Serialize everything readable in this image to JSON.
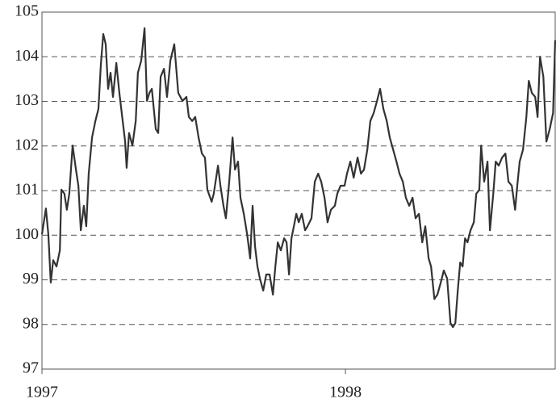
{
  "chart_data": {
    "type": "line",
    "x": [
      1997.0,
      1997.013,
      1997.021,
      1997.029,
      1997.037,
      1997.048,
      1997.059,
      1997.064,
      1997.074,
      1997.082,
      1997.09,
      1997.101,
      1997.112,
      1997.12,
      1997.128,
      1997.138,
      1997.146,
      1997.154,
      1997.165,
      1997.176,
      1997.186,
      1997.194,
      1997.202,
      1997.21,
      1997.218,
      1997.226,
      1997.234,
      1997.245,
      1997.255,
      1997.266,
      1997.274,
      1997.279,
      1997.287,
      1997.298,
      1997.309,
      1997.316,
      1997.327,
      1997.338,
      1997.346,
      1997.354,
      1997.362,
      1997.375,
      1997.383,
      1997.391,
      1997.402,
      1997.412,
      1997.423,
      1997.436,
      1997.449,
      1997.463,
      1997.476,
      1997.484,
      1997.495,
      1997.505,
      1997.516,
      1997.527,
      1997.537,
      1997.545,
      1997.559,
      1997.566,
      1997.58,
      1997.588,
      1997.598,
      1997.606,
      1997.617,
      1997.628,
      1997.636,
      1997.646,
      1997.654,
      1997.665,
      1997.676,
      1997.686,
      1997.694,
      1997.702,
      1997.71,
      1997.718,
      1997.729,
      1997.739,
      1997.75,
      1997.761,
      1997.769,
      1997.777,
      1997.787,
      1997.798,
      1997.806,
      1997.814,
      1997.822,
      1997.83,
      1997.838,
      1997.846,
      1997.856,
      1997.867,
      1997.875,
      1997.888,
      1997.899,
      1997.91,
      1997.92,
      1997.931,
      1997.941,
      1997.952,
      1997.965,
      1997.973,
      1997.984,
      1997.997,
      1998.005,
      1998.016,
      1998.027,
      1998.04,
      1998.051,
      1998.061,
      1998.072,
      1998.082,
      1998.093,
      1998.104,
      1998.114,
      1998.125,
      1998.136,
      1998.146,
      1998.157,
      1998.168,
      1998.178,
      1998.189,
      1998.199,
      1998.21,
      1998.221,
      1998.231,
      1998.242,
      1998.253,
      1998.263,
      1998.274,
      1998.282,
      1998.293,
      1998.303,
      1998.314,
      1998.324,
      1998.335,
      1998.346,
      1998.354,
      1998.362,
      1998.37,
      1998.378,
      1998.386,
      1998.394,
      1998.402,
      1998.412,
      1998.423,
      1998.431,
      1998.441,
      1998.447,
      1998.457,
      1998.468,
      1998.476,
      1998.487,
      1998.495,
      1998.505,
      1998.516,
      1998.527,
      1998.537,
      1998.548,
      1998.559,
      1998.566,
      1998.574,
      1998.585,
      1998.596,
      1998.604,
      1998.614,
      1998.625,
      1998.633,
      1998.641,
      1998.652,
      1998.662,
      1998.673,
      1998.684,
      1998.691
    ],
    "series": [
      {
        "color": "#333333",
        "values": [
          100.02,
          100.6,
          100.02,
          98.94,
          99.44,
          99.3,
          99.66,
          101.02,
          100.93,
          100.57,
          100.93,
          102.01,
          101.47,
          101.11,
          100.11,
          100.66,
          100.2,
          101.38,
          102.19,
          102.56,
          102.83,
          103.82,
          104.51,
          104.28,
          103.28,
          103.64,
          103.1,
          103.86,
          103.19,
          102.56,
          102.1,
          101.51,
          102.29,
          102.01,
          102.56,
          103.64,
          103.91,
          104.64,
          103.01,
          103.19,
          103.28,
          102.38,
          102.29,
          103.55,
          103.73,
          103.1,
          103.91,
          104.28,
          103.19,
          103.01,
          103.1,
          102.65,
          102.56,
          102.65,
          102.19,
          101.83,
          101.74,
          101.02,
          100.75,
          100.93,
          101.56,
          101.11,
          100.66,
          100.38,
          101.2,
          102.19,
          101.47,
          101.65,
          100.84,
          100.48,
          100.02,
          99.48,
          100.66,
          99.75,
          99.3,
          99.03,
          98.76,
          99.12,
          99.12,
          98.67,
          99.3,
          99.84,
          99.66,
          99.93,
          99.84,
          99.12,
          99.93,
          100.2,
          100.48,
          100.29,
          100.48,
          100.11,
          100.2,
          100.38,
          101.2,
          101.38,
          101.2,
          100.84,
          100.29,
          100.57,
          100.66,
          100.93,
          101.11,
          101.11,
          101.38,
          101.65,
          101.29,
          101.74,
          101.38,
          101.47,
          101.92,
          102.56,
          102.74,
          103.01,
          103.28,
          102.83,
          102.56,
          102.19,
          101.92,
          101.65,
          101.38,
          101.2,
          100.84,
          100.66,
          100.84,
          100.38,
          100.48,
          99.84,
          100.2,
          99.48,
          99.3,
          98.57,
          98.67,
          98.94,
          99.21,
          99.03,
          98.03,
          97.94,
          98.03,
          98.76,
          99.39,
          99.3,
          99.93,
          99.84,
          100.11,
          100.29,
          100.93,
          101.02,
          102.01,
          101.2,
          101.65,
          100.11,
          100.93,
          101.65,
          101.56,
          101.74,
          101.83,
          101.2,
          101.11,
          100.57,
          101.11,
          101.65,
          101.92,
          102.65,
          103.46,
          103.19,
          103.1,
          102.65,
          104.0,
          103.55,
          102.1,
          102.38,
          102.74,
          104.37
        ]
      }
    ],
    "xlim": [
      1997,
      1998.691
    ],
    "xticks": [
      1997,
      1998
    ],
    "ylim": [
      97,
      105
    ],
    "yticks": [
      97,
      98,
      99,
      100,
      101,
      102,
      103,
      104,
      105
    ],
    "grid": true
  }
}
